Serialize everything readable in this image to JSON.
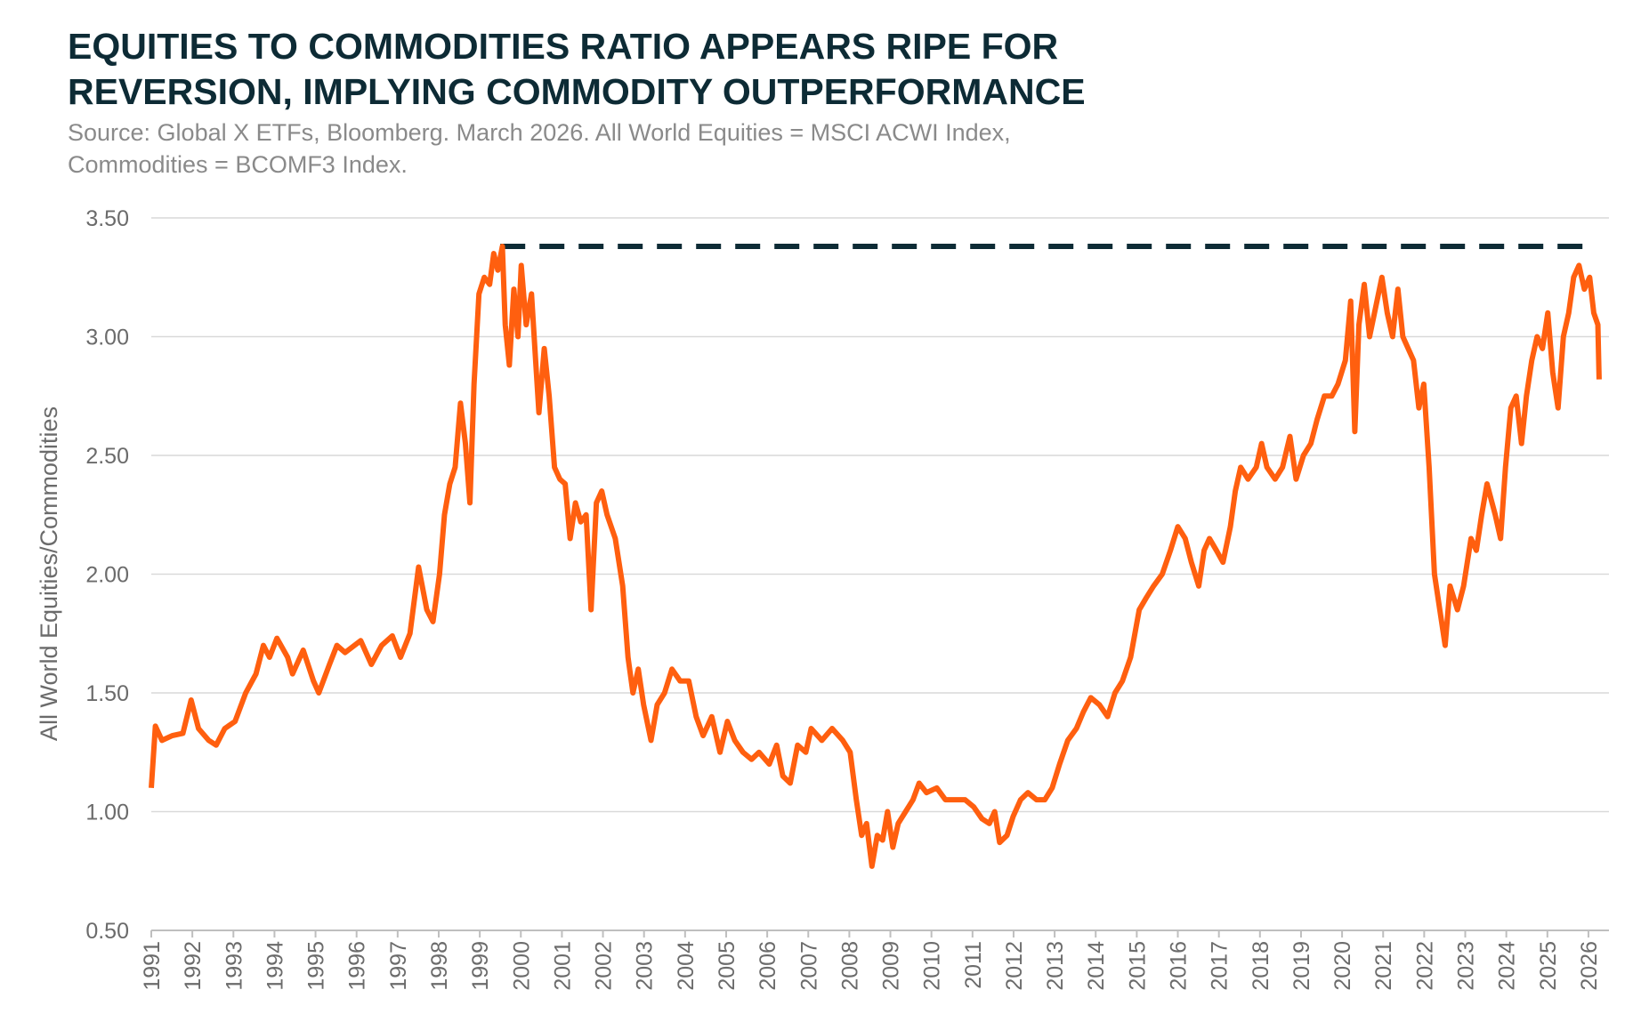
{
  "chart_data": {
    "type": "line",
    "title": [
      "EQUITIES TO COMMODITIES RATIO APPEARS RIPE FOR",
      "REVERSION, IMPLYING COMMODITY OUTPERFORMANCE"
    ],
    "subtitle": [
      "Source: Global X ETFs, Bloomberg. March 2026. All World Equities = MSCI ACWI Index,",
      "Commodities = BCOMF3 Index."
    ],
    "y_label": "All World Equities/Commodities",
    "color": "#ff5f0f",
    "reference_line": {
      "value": 3.38,
      "x": [
        1999.5,
        2025.9
      ],
      "color": "#0d2b35"
    },
    "grid": true,
    "xlim": [
      1991,
      2026.5
    ],
    "xticks": [
      1991,
      1992,
      1993,
      1994,
      1995,
      1996,
      1997,
      1998,
      1999,
      2000,
      2001,
      2002,
      2003,
      2004,
      2005,
      2006,
      2007,
      2008,
      2009,
      2010,
      2011,
      2012,
      2013,
      2014,
      2015,
      2016,
      2017,
      2018,
      2019,
      2020,
      2021,
      2022,
      2023,
      2024,
      2025,
      2026
    ],
    "ylim": [
      0.5,
      3.5
    ],
    "yticks": [
      {
        "value": 0.5,
        "label": "0.50"
      },
      {
        "value": 1,
        "label": "1.00"
      },
      {
        "value": 1.5,
        "label": "1.50"
      },
      {
        "value": 2,
        "label": "2.00"
      },
      {
        "value": 2.5,
        "label": "2.50"
      },
      {
        "value": 3,
        "label": "3.00"
      },
      {
        "value": 3.5,
        "label": "3.50"
      }
    ],
    "x": [
      1991.0,
      1991.1,
      1991.26,
      1991.51,
      1991.77,
      1991.97,
      1992.15,
      1992.4,
      1992.58,
      1992.79,
      1993.04,
      1993.3,
      1993.55,
      1993.73,
      1993.88,
      1994.06,
      1994.32,
      1994.44,
      1994.7,
      1994.95,
      1995.08,
      1995.34,
      1995.52,
      1995.72,
      1996.1,
      1996.36,
      1996.61,
      1996.87,
      1997.07,
      1997.3,
      1997.51,
      1997.71,
      1997.86,
      1998.02,
      1998.14,
      1998.27,
      1998.4,
      1998.53,
      1998.65,
      1998.76,
      1998.86,
      1998.98,
      1999.11,
      1999.24,
      1999.34,
      1999.44,
      1999.55,
      1999.62,
      1999.72,
      1999.83,
      1999.93,
      2000.01,
      2000.13,
      2000.26,
      2000.36,
      2000.44,
      2000.57,
      2000.69,
      2000.82,
      2000.95,
      2001.08,
      2001.2,
      2001.33,
      2001.46,
      2001.59,
      2001.71,
      2001.84,
      2001.97,
      2002.1,
      2002.3,
      2002.48,
      2002.61,
      2002.73,
      2002.86,
      2002.99,
      2003.17,
      2003.32,
      2003.5,
      2003.68,
      2003.88,
      2004.09,
      2004.27,
      2004.44,
      2004.65,
      2004.85,
      2005.03,
      2005.21,
      2005.41,
      2005.62,
      2005.8,
      2006.05,
      2006.23,
      2006.38,
      2006.56,
      2006.74,
      2006.94,
      2007.07,
      2007.33,
      2007.58,
      2007.84,
      2008.02,
      2008.17,
      2008.3,
      2008.42,
      2008.55,
      2008.68,
      2008.81,
      2008.93,
      2009.06,
      2009.19,
      2009.37,
      2009.55,
      2009.7,
      2009.88,
      2010.13,
      2010.34,
      2010.57,
      2010.82,
      2011.03,
      2011.23,
      2011.41,
      2011.54,
      2011.66,
      2011.84,
      2011.99,
      2012.17,
      2012.35,
      2012.56,
      2012.76,
      2012.94,
      2013.12,
      2013.32,
      2013.53,
      2013.7,
      2013.88,
      2014.09,
      2014.29,
      2014.47,
      2014.65,
      2014.85,
      2015.06,
      2015.23,
      2015.41,
      2015.62,
      2015.82,
      2016.0,
      2016.18,
      2016.33,
      2016.51,
      2016.64,
      2016.77,
      2016.94,
      2017.1,
      2017.28,
      2017.4,
      2017.53,
      2017.71,
      2017.91,
      2018.04,
      2018.17,
      2018.37,
      2018.55,
      2018.73,
      2018.88,
      2019.06,
      2019.24,
      2019.39,
      2019.57,
      2019.75,
      2019.9,
      2020.08,
      2020.21,
      2020.31,
      2020.41,
      2020.54,
      2020.67,
      2020.85,
      2020.97,
      2021.1,
      2021.23,
      2021.36,
      2021.48,
      2021.61,
      2021.74,
      2021.87,
      2021.99,
      2022.12,
      2022.25,
      2022.38,
      2022.51,
      2022.63,
      2022.81,
      2022.96,
      2023.14,
      2023.27,
      2023.4,
      2023.53,
      2023.73,
      2023.86,
      2023.98,
      2024.11,
      2024.24,
      2024.37,
      2024.49,
      2024.62,
      2024.75,
      2024.88,
      2025.01,
      2025.13,
      2025.26,
      2025.39,
      2025.52,
      2025.64,
      2025.77,
      2025.9,
      2026.03,
      2026.13,
      2026.23,
      2026.26
    ],
    "values": [
      1.1,
      1.36,
      1.3,
      1.32,
      1.33,
      1.47,
      1.35,
      1.3,
      1.28,
      1.35,
      1.38,
      1.5,
      1.58,
      1.7,
      1.65,
      1.73,
      1.65,
      1.58,
      1.68,
      1.55,
      1.5,
      1.62,
      1.7,
      1.67,
      1.72,
      1.62,
      1.7,
      1.74,
      1.65,
      1.75,
      2.03,
      1.85,
      1.8,
      2.0,
      2.25,
      2.38,
      2.45,
      2.72,
      2.55,
      2.3,
      2.8,
      3.18,
      3.25,
      3.22,
      3.35,
      3.28,
      3.38,
      3.05,
      2.88,
      3.2,
      3.0,
      3.3,
      3.05,
      3.18,
      2.9,
      2.68,
      2.95,
      2.75,
      2.45,
      2.4,
      2.38,
      2.15,
      2.3,
      2.22,
      2.25,
      1.85,
      2.3,
      2.35,
      2.25,
      2.15,
      1.95,
      1.65,
      1.5,
      1.6,
      1.45,
      1.3,
      1.45,
      1.5,
      1.6,
      1.55,
      1.55,
      1.4,
      1.32,
      1.4,
      1.25,
      1.38,
      1.3,
      1.25,
      1.22,
      1.25,
      1.2,
      1.28,
      1.15,
      1.12,
      1.28,
      1.25,
      1.35,
      1.3,
      1.35,
      1.3,
      1.25,
      1.05,
      0.9,
      0.95,
      0.77,
      0.9,
      0.88,
      1.0,
      0.85,
      0.95,
      1.0,
      1.05,
      1.12,
      1.08,
      1.1,
      1.05,
      1.05,
      1.05,
      1.02,
      0.97,
      0.95,
      1.0,
      0.87,
      0.9,
      0.98,
      1.05,
      1.08,
      1.05,
      1.05,
      1.1,
      1.2,
      1.3,
      1.35,
      1.42,
      1.48,
      1.45,
      1.4,
      1.5,
      1.55,
      1.65,
      1.85,
      1.9,
      1.95,
      2.0,
      2.1,
      2.2,
      2.15,
      2.05,
      1.95,
      2.1,
      2.15,
      2.1,
      2.05,
      2.2,
      2.35,
      2.45,
      2.4,
      2.45,
      2.55,
      2.45,
      2.4,
      2.45,
      2.58,
      2.4,
      2.5,
      2.55,
      2.65,
      2.75,
      2.75,
      2.8,
      2.9,
      3.15,
      2.6,
      3.05,
      3.22,
      3.0,
      3.15,
      3.25,
      3.1,
      3.0,
      3.2,
      3.0,
      2.95,
      2.9,
      2.7,
      2.8,
      2.45,
      2.0,
      1.85,
      1.7,
      1.95,
      1.85,
      1.95,
      2.15,
      2.1,
      2.25,
      2.38,
      2.25,
      2.15,
      2.45,
      2.7,
      2.75,
      2.55,
      2.75,
      2.9,
      3.0,
      2.95,
      3.1,
      2.85,
      2.7,
      3.0,
      3.1,
      3.25,
      3.3,
      3.2,
      3.25,
      3.1,
      3.05,
      2.82
    ]
  }
}
